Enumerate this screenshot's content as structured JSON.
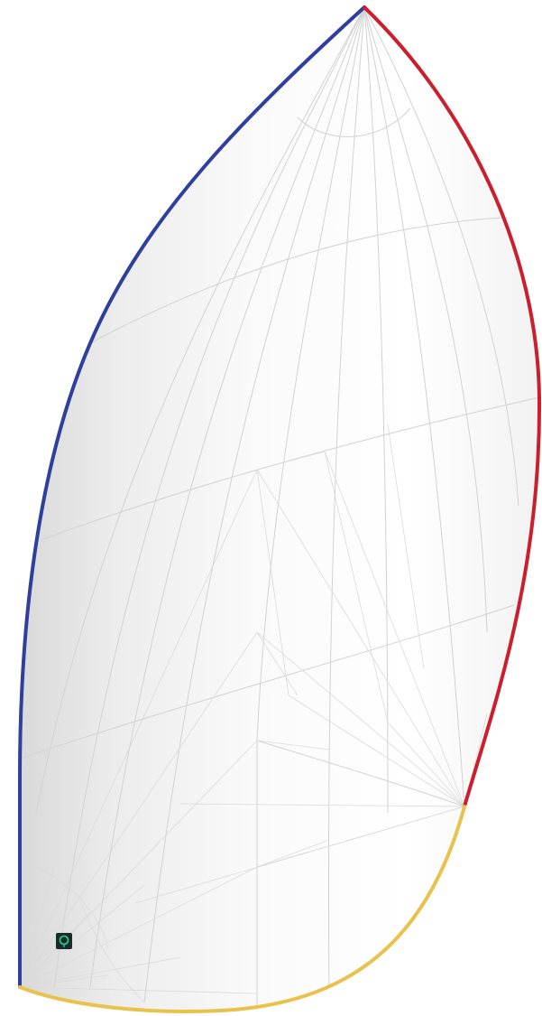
{
  "colors": {
    "luff": "#2e3f9e",
    "leech": "#cc1f2d",
    "foot": "#e8c24a",
    "sail_fill_light": "#ffffff",
    "sail_fill_shade": "#e6e6e6",
    "panel_lines": "#d2d2d2",
    "marker_bg": "#1b2a2a",
    "marker_ring": "#2fbf80"
  },
  "icons": {
    "marker": "tack-ring-icon"
  }
}
